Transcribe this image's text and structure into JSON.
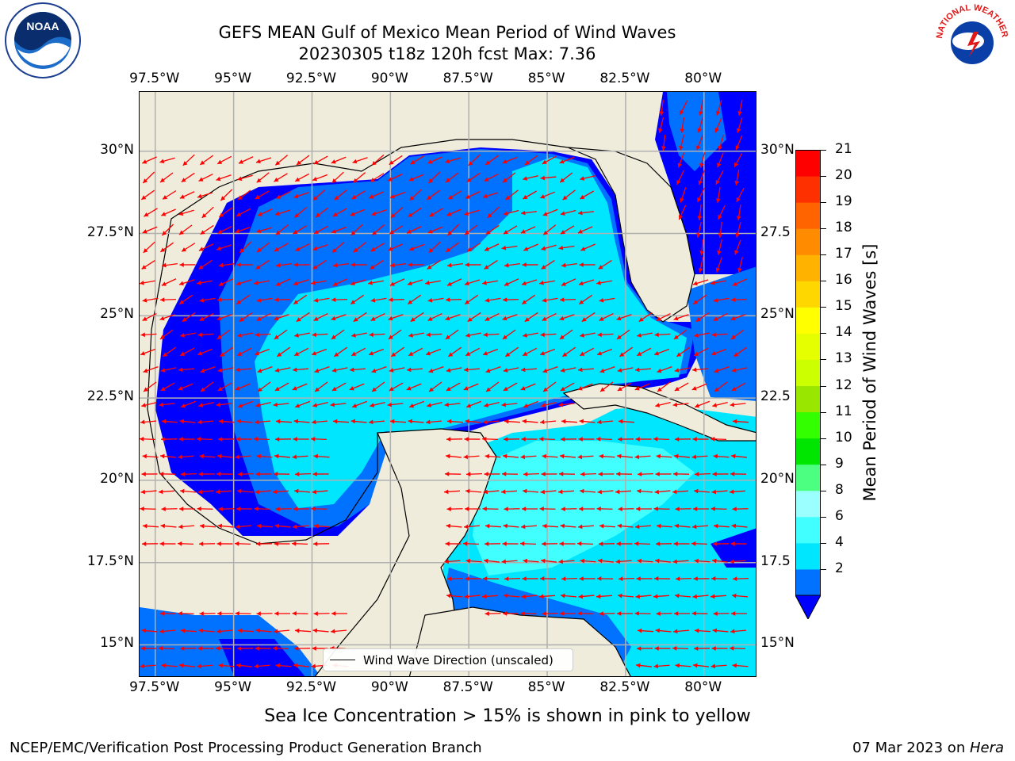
{
  "title": {
    "line1": "GEFS MEAN Gulf of Mexico Mean Period of Wind Waves",
    "line2": "20230305 t18z 120h fcst   Max: 7.36"
  },
  "axes": {
    "lon_labels": [
      "97.5°W",
      "95°W",
      "92.5°W",
      "90°W",
      "87.5°W",
      "85°W",
      "82.5°W",
      "80°W"
    ],
    "lat_labels_left": [
      "30°N",
      "27.5°N",
      "25°N",
      "22.5°N",
      "20°N",
      "17.5°N",
      "15°N"
    ],
    "lat_labels_right": [
      "30°N",
      "27.5",
      "25°N",
      "22.5",
      "20°N",
      "17.5",
      "15°N"
    ]
  },
  "map": {
    "lon_range": [
      -98.0,
      -78.3
    ],
    "lat_range": [
      14.0,
      31.8
    ],
    "gridlines": true,
    "colors": {
      "land": "#efecdb",
      "coast": "#000000",
      "grid": "#b0b0b0",
      "arrow": "#ff0000"
    }
  },
  "legend": {
    "label": "Wind Wave Direction (unscaled)",
    "position": "lower center"
  },
  "colorbar": {
    "label": "Mean Period of Wind Waves [s]",
    "ticks": [
      "21",
      "20",
      "19",
      "18",
      "17",
      "16",
      "15",
      "14",
      "13",
      "12",
      "11",
      "10",
      "9",
      "8",
      "6",
      "4",
      "2"
    ],
    "levels": [
      2,
      4,
      6,
      8,
      9,
      10,
      11,
      12,
      13,
      14,
      15,
      16,
      17,
      18,
      19,
      20,
      21
    ],
    "colors": [
      "#0072ff",
      "#00e6ff",
      "#41ffff",
      "#9bffff",
      "#4dff80",
      "#00e600",
      "#33ff00",
      "#99e600",
      "#ccff00",
      "#e6ff00",
      "#ffff00",
      "#ffd700",
      "#ffb200",
      "#ff8c00",
      "#ff6400",
      "#ff3000",
      "#ff0000"
    ],
    "under_color": "#0000ff",
    "extend": "min"
  },
  "note": "Sea Ice Concentration > 15% is shown in pink to yellow",
  "footer": {
    "left": "NCEP/EMC/Verification Post Processing Product Generation Branch",
    "right_prefix": "07 Mar 2023 on ",
    "right_machine": "Hera"
  },
  "logos": {
    "left": "NOAA",
    "right": "NATIONAL WEATHER SERVICE"
  }
}
